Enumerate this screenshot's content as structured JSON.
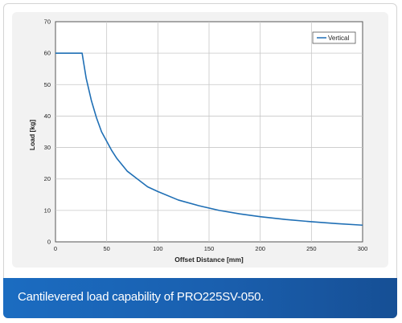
{
  "caption": "Cantilevered load capability of PRO225SV-050.",
  "chart_data": {
    "type": "line",
    "title": "",
    "xlabel": "Offset Distance [mm]",
    "ylabel": "Load [kg]",
    "xlim": [
      0,
      300
    ],
    "ylim": [
      0,
      70
    ],
    "xticks": [
      0,
      50,
      100,
      150,
      200,
      250,
      300
    ],
    "yticks": [
      0,
      10,
      20,
      30,
      40,
      50,
      60,
      70
    ],
    "grid": true,
    "legend_position": "top-right",
    "series": [
      {
        "name": "Vertical",
        "color": "#1f6fb5",
        "x": [
          0,
          26,
          27,
          30,
          35,
          40,
          45,
          50,
          55,
          60,
          70,
          80,
          90,
          100,
          120,
          140,
          160,
          180,
          200,
          225,
          250,
          275,
          300
        ],
        "y": [
          60,
          60,
          58,
          52,
          45,
          39.5,
          35,
          32,
          29,
          26.5,
          22.5,
          20,
          17.5,
          16,
          13.3,
          11.5,
          10,
          8.9,
          8,
          7.1,
          6.4,
          5.8,
          5.3
        ]
      }
    ]
  }
}
